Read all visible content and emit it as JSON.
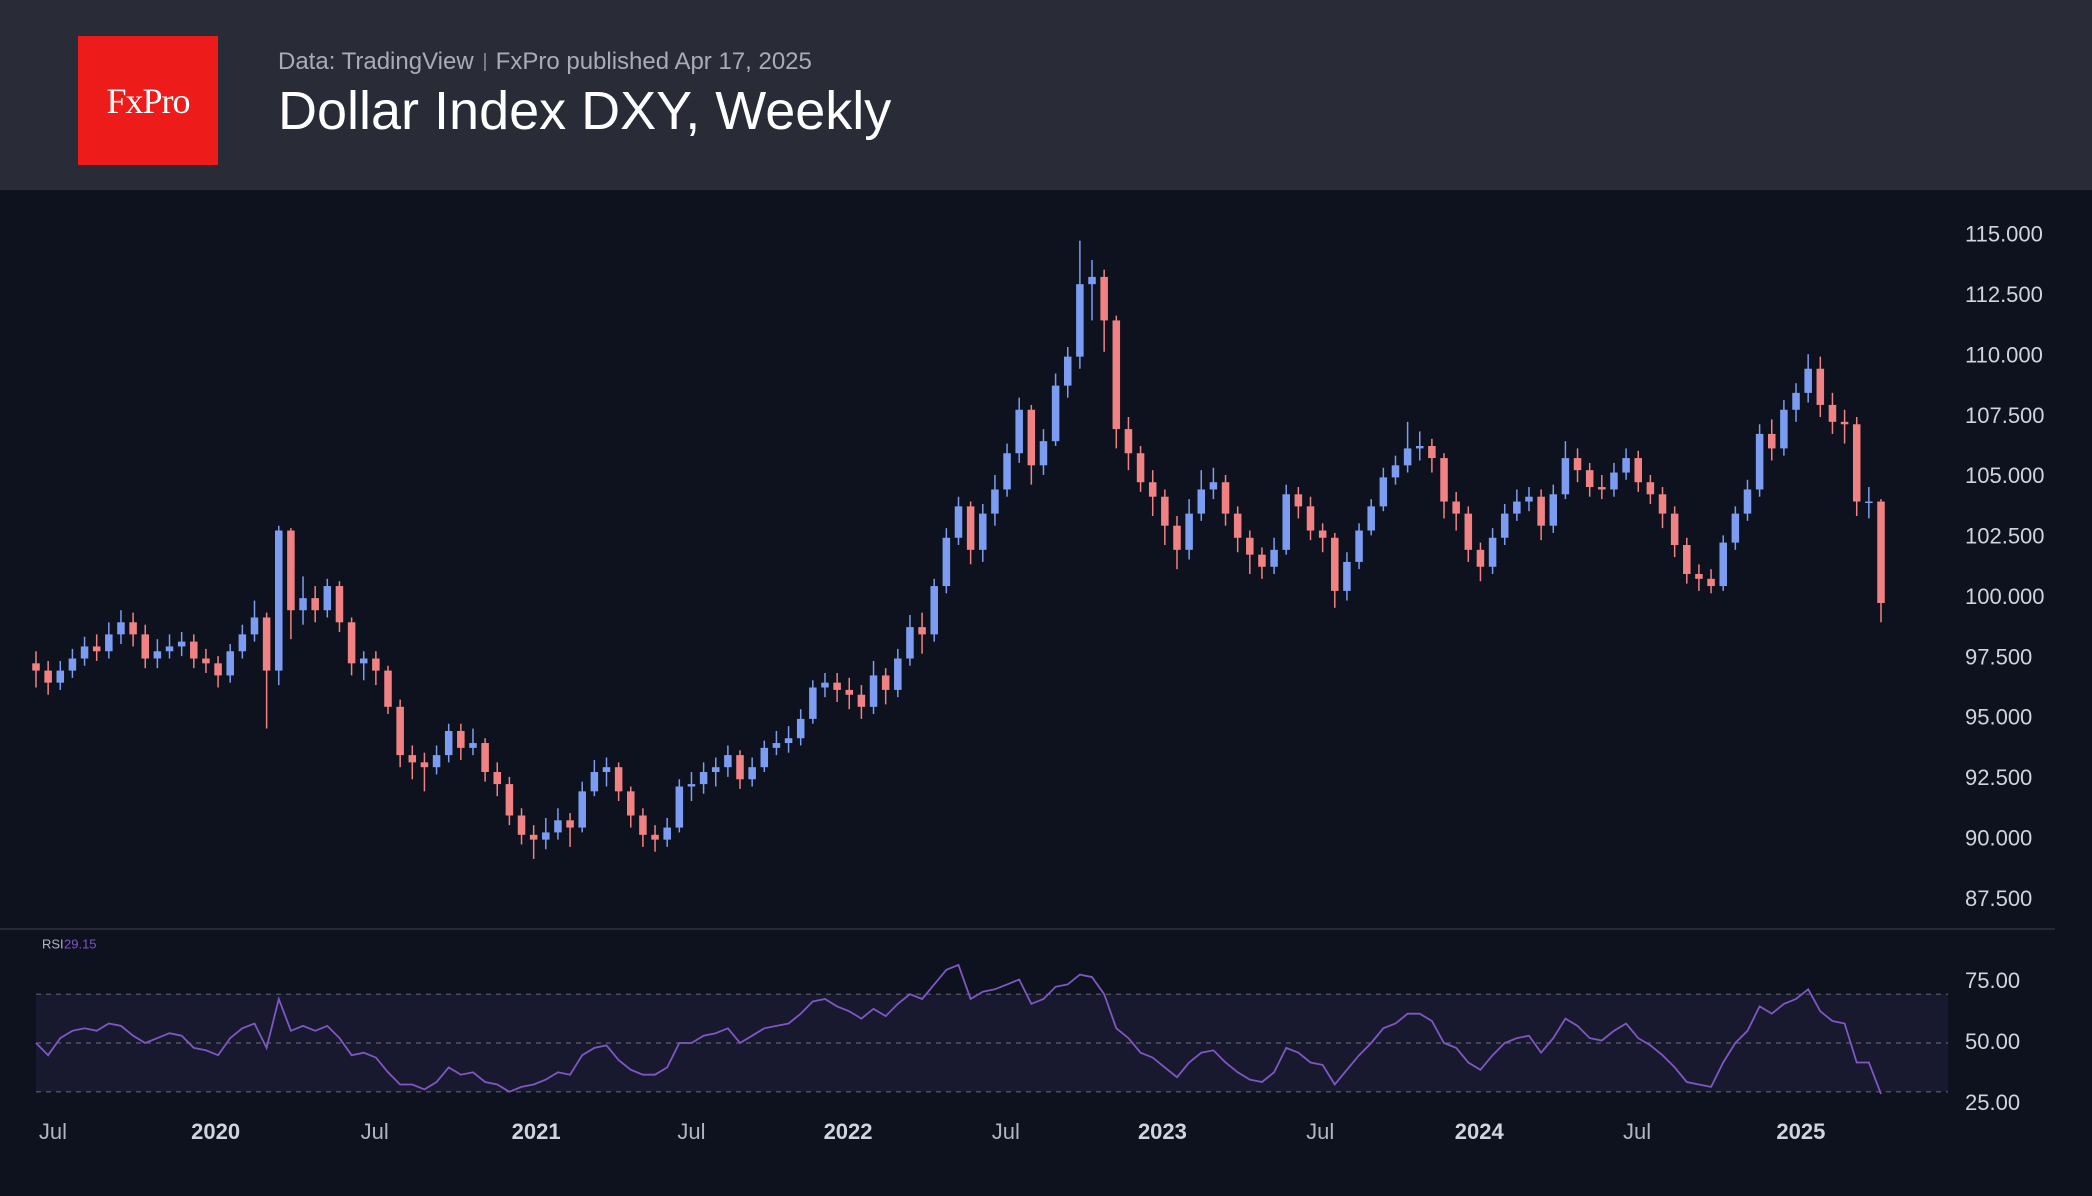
{
  "header": {
    "logo": "FxPro",
    "source": "Data: TradingView",
    "published": "FxPro published Apr 17, 2025"
  },
  "chart_data": {
    "type": "candlestick",
    "title": "Dollar Index DXY, Weekly",
    "up_color": "#7b9cf0",
    "down_color": "#f08283",
    "open": [
      97.3,
      97,
      96.5,
      97,
      97.5,
      98,
      97.8,
      98.5,
      99,
      98.5,
      97.5,
      97.8,
      98,
      98.2,
      97.5,
      97.3,
      96.8,
      97.8,
      98.5,
      99.2,
      97,
      102.8,
      99.5,
      100,
      99.5,
      100.5,
      99,
      97.3,
      97.5,
      97,
      95.5,
      93.5,
      93.2,
      93,
      93.5,
      94.5,
      93.8,
      94,
      92.8,
      92.3,
      91,
      90.2,
      90,
      90.3,
      90.8,
      90.5,
      92,
      92.8,
      93,
      92,
      91,
      90.2,
      90,
      90.5,
      92.2,
      92.3,
      92.8,
      93,
      93.5,
      92.5,
      93,
      93.8,
      94,
      94.2,
      95,
      96.3,
      96.5,
      96.2,
      96,
      95.5,
      96.8,
      96.2,
      97.5,
      98.8,
      98.5,
      100.5,
      102.5,
      103.8,
      102,
      103.5,
      104.5,
      106,
      107.8,
      105.5,
      106.5,
      108.8,
      110,
      113,
      113.3,
      111.5,
      107,
      106,
      104.8,
      104.2,
      103,
      102,
      103.5,
      104.5,
      104.8,
      103.5,
      102.5,
      101.8,
      101.3,
      102,
      104.3,
      103.8,
      102.8,
      102.5,
      100.3,
      101.5,
      102.8,
      103.8,
      105,
      105.5,
      106.2,
      106.3,
      105.8,
      104,
      103.5,
      102,
      101.3,
      102.5,
      103.5,
      104,
      104.2,
      103,
      104.3,
      105.8,
      105.3,
      104.6,
      104.5,
      105.2,
      105.8,
      104.8,
      104.3,
      103.5,
      102.2,
      101,
      100.8,
      100.5,
      102.3,
      103.5,
      104.5,
      106.8,
      106.2,
      107.8,
      108.5,
      109.5,
      108,
      107.3,
      107.2,
      104,
      104
    ],
    "high": [
      97.8,
      97.4,
      97.4,
      97.9,
      98.4,
      98.5,
      99,
      99.5,
      99.4,
      98.9,
      98.3,
      98.5,
      98.6,
      98.5,
      97.9,
      97.6,
      98.1,
      98.9,
      99.9,
      99.4,
      103,
      102.9,
      100.9,
      100.5,
      100.8,
      100.7,
      99.2,
      97.8,
      97.8,
      97.2,
      95.8,
      93.9,
      93.6,
      93.9,
      94.8,
      94.8,
      94.6,
      94.2,
      93.2,
      92.6,
      91.3,
      90.6,
      90.9,
      91.3,
      91.1,
      92.4,
      93.3,
      93.4,
      93.2,
      92.2,
      91.3,
      90.6,
      90.9,
      92.5,
      92.8,
      93.2,
      93.4,
      93.9,
      93.7,
      93.4,
      94.1,
      94.5,
      94.7,
      95.4,
      96.6,
      96.9,
      96.9,
      96.7,
      96.4,
      97.4,
      97.1,
      97.9,
      99.3,
      99.4,
      100.8,
      102.9,
      104.2,
      104,
      103.9,
      105.1,
      106.4,
      108.3,
      108,
      107,
      109.3,
      110.4,
      114.8,
      114,
      113.6,
      111.7,
      107.5,
      106.3,
      105.3,
      104.5,
      103.4,
      104.1,
      105.3,
      105.4,
      105.1,
      103.8,
      102.8,
      102.1,
      102.5,
      104.7,
      104.6,
      104.2,
      103.1,
      102.7,
      101.9,
      103.1,
      104.1,
      105.4,
      105.9,
      107.3,
      106.9,
      106.6,
      106,
      104.4,
      103.8,
      102.3,
      102.9,
      103.9,
      104.5,
      104.6,
      104.5,
      104.7,
      106.5,
      106.2,
      105.6,
      105.1,
      105.6,
      106.2,
      106.1,
      105.1,
      104.6,
      103.8,
      102.5,
      101.4,
      101.2,
      102.6,
      103.8,
      104.9,
      107.2,
      107.4,
      108.2,
      108.9,
      110.1,
      110,
      108.5,
      107.8,
      107.5,
      104.6,
      104.1
    ],
    "low": [
      96.3,
      96,
      96.2,
      96.7,
      97.2,
      97.4,
      97.5,
      98.1,
      98,
      97.1,
      97.1,
      97.5,
      97.6,
      97.1,
      96.9,
      96.3,
      96.5,
      97.5,
      98.2,
      94.6,
      96.4,
      98.3,
      98.9,
      99,
      99.2,
      98.6,
      96.8,
      96.6,
      96.4,
      95.2,
      93,
      92.5,
      92,
      92.7,
      93.2,
      93.3,
      93.5,
      92.4,
      91.8,
      90.6,
      89.8,
      89.2,
      89.6,
      90,
      89.7,
      90.3,
      91.8,
      92.2,
      91.6,
      90.5,
      89.7,
      89.5,
      89.7,
      90.3,
      91.6,
      91.9,
      92.2,
      92.6,
      92.1,
      92.2,
      92.8,
      93.5,
      93.6,
      93.9,
      94.8,
      95.9,
      95.7,
      95.4,
      95,
      95.2,
      95.6,
      95.9,
      97.2,
      97.7,
      98.2,
      100.2,
      102.2,
      101.4,
      101.5,
      103,
      104.2,
      105.6,
      104.7,
      105.1,
      106.3,
      108.3,
      109.5,
      111.5,
      110.2,
      106.2,
      105.3,
      104.4,
      103.4,
      102.2,
      101.2,
      101.6,
      103.2,
      104.1,
      103,
      101.9,
      101,
      100.8,
      101,
      101.8,
      103.3,
      102.4,
      101.9,
      99.6,
      99.9,
      101.2,
      102.6,
      103.6,
      104.7,
      105.2,
      105.7,
      105.2,
      103.3,
      102.8,
      101.5,
      100.7,
      101,
      102.2,
      103.2,
      103.6,
      102.4,
      102.7,
      104.1,
      104.8,
      104.2,
      104.1,
      104.2,
      104.9,
      104.4,
      103.9,
      102.9,
      101.7,
      100.6,
      100.3,
      100.2,
      100.3,
      102,
      103.2,
      104.2,
      105.7,
      105.9,
      107.3,
      108.1,
      107.5,
      106.8,
      106.4,
      103.4,
      103.3,
      99
    ],
    "close": [
      97,
      96.5,
      97,
      97.5,
      98,
      97.8,
      98.5,
      99,
      98.5,
      97.5,
      97.8,
      98,
      98.2,
      97.5,
      97.3,
      96.8,
      97.8,
      98.5,
      99.2,
      97,
      102.8,
      99.5,
      100,
      99.5,
      100.5,
      99,
      97.3,
      97.5,
      97,
      95.5,
      93.5,
      93.2,
      93,
      93.5,
      94.5,
      93.8,
      94,
      92.8,
      92.3,
      91,
      90.2,
      90,
      90.3,
      90.8,
      90.5,
      92,
      92.8,
      93,
      92,
      91,
      90.2,
      90,
      90.5,
      92.2,
      92.3,
      92.8,
      93,
      93.5,
      92.5,
      93,
      93.8,
      94,
      94.2,
      95,
      96.3,
      96.5,
      96.2,
      96,
      95.5,
      96.8,
      96.2,
      97.5,
      98.8,
      98.5,
      100.5,
      102.5,
      103.8,
      102,
      103.5,
      104.5,
      106,
      107.8,
      105.5,
      106.5,
      108.8,
      110,
      113,
      113.3,
      111.5,
      107,
      106,
      104.8,
      104.2,
      103,
      102,
      103.5,
      104.5,
      104.8,
      103.5,
      102.5,
      101.8,
      101.3,
      102,
      104.3,
      103.8,
      102.8,
      102.5,
      100.3,
      101.5,
      102.8,
      103.8,
      105,
      105.5,
      106.2,
      106.3,
      105.8,
      104,
      103.5,
      102,
      101.3,
      102.5,
      103.5,
      104,
      104.2,
      103,
      104.3,
      105.8,
      105.3,
      104.6,
      104.5,
      105.2,
      105.8,
      104.8,
      104.3,
      103.5,
      102.2,
      101,
      100.8,
      100.5,
      102.3,
      103.5,
      104.5,
      106.8,
      106.2,
      107.8,
      108.5,
      109.5,
      108,
      107.3,
      107.2,
      104,
      104,
      99.8
    ],
    "xlim": [
      0,
      152
    ],
    "xticks": [
      {
        "value": 1.4,
        "label": "Jul"
      },
      {
        "value": 14.8,
        "label": "2020"
      },
      {
        "value": 27.9,
        "label": "Jul"
      },
      {
        "value": 41.2,
        "label": "2021"
      },
      {
        "value": 54.0,
        "label": "Jul"
      },
      {
        "value": 66.9,
        "label": "2022"
      },
      {
        "value": 79.9,
        "label": "Jul"
      },
      {
        "value": 92.8,
        "label": "2023"
      },
      {
        "value": 105.8,
        "label": "Jul"
      },
      {
        "value": 118.9,
        "label": "2024"
      },
      {
        "value": 131.9,
        "label": "Jul"
      },
      {
        "value": 145.4,
        "label": "2025"
      }
    ],
    "ylim": [
      86.3,
      116.9
    ],
    "yticks": [
      {
        "value": 87.5,
        "label": "87.500"
      },
      {
        "value": 90,
        "label": "90.000"
      },
      {
        "value": 92.5,
        "label": "92.500"
      },
      {
        "value": 95,
        "label": "95.000"
      },
      {
        "value": 97.5,
        "label": "97.500"
      },
      {
        "value": 100,
        "label": "100.000"
      },
      {
        "value": 102.5,
        "label": "102.500"
      },
      {
        "value": 105,
        "label": "105.000"
      },
      {
        "value": 107.5,
        "label": "107.500"
      },
      {
        "value": 110,
        "label": "110.000"
      },
      {
        "value": 112.5,
        "label": "112.500"
      },
      {
        "value": 115,
        "label": "115.000"
      }
    ],
    "rsi": {
      "type": "line",
      "name": "RSI",
      "color": "#7e57c2",
      "values": [
        50,
        45,
        52,
        55,
        56,
        55,
        58,
        57,
        53,
        50,
        52,
        54,
        53,
        48,
        47,
        45,
        52,
        56,
        58,
        48,
        68,
        55,
        57,
        55,
        57,
        52,
        45,
        46,
        44,
        38,
        33,
        33,
        31,
        34,
        40,
        37,
        38,
        34,
        33,
        30,
        32,
        33,
        35,
        38,
        37,
        45,
        48,
        49,
        43,
        39,
        37,
        37,
        40,
        50,
        50,
        53,
        54,
        56,
        50,
        53,
        56,
        57,
        58,
        62,
        67,
        68,
        65,
        63,
        60,
        64,
        61,
        66,
        70,
        68,
        74,
        80,
        82,
        68,
        71,
        72,
        74,
        76,
        66,
        68,
        73,
        74,
        78,
        77,
        70,
        56,
        52,
        46,
        44,
        40,
        36,
        42,
        46,
        47,
        42,
        38,
        35,
        34,
        38,
        48,
        46,
        42,
        41,
        33,
        39,
        45,
        50,
        56,
        58,
        62,
        62,
        59,
        50,
        48,
        42,
        39,
        45,
        50,
        52,
        53,
        46,
        52,
        60,
        57,
        52,
        51,
        55,
        58,
        52,
        49,
        45,
        40,
        34,
        33,
        32,
        42,
        50,
        55,
        65,
        62,
        66,
        68,
        72,
        63,
        59,
        58,
        42,
        42,
        29.15
      ],
      "ylim": [
        25,
        96.7
      ],
      "yticks": [
        {
          "value": 25,
          "label": "25.00"
        },
        {
          "value": 50,
          "label": "50.00"
        },
        {
          "value": 75,
          "label": "75.00"
        }
      ],
      "levels": [
        30,
        50,
        70
      ]
    }
  }
}
